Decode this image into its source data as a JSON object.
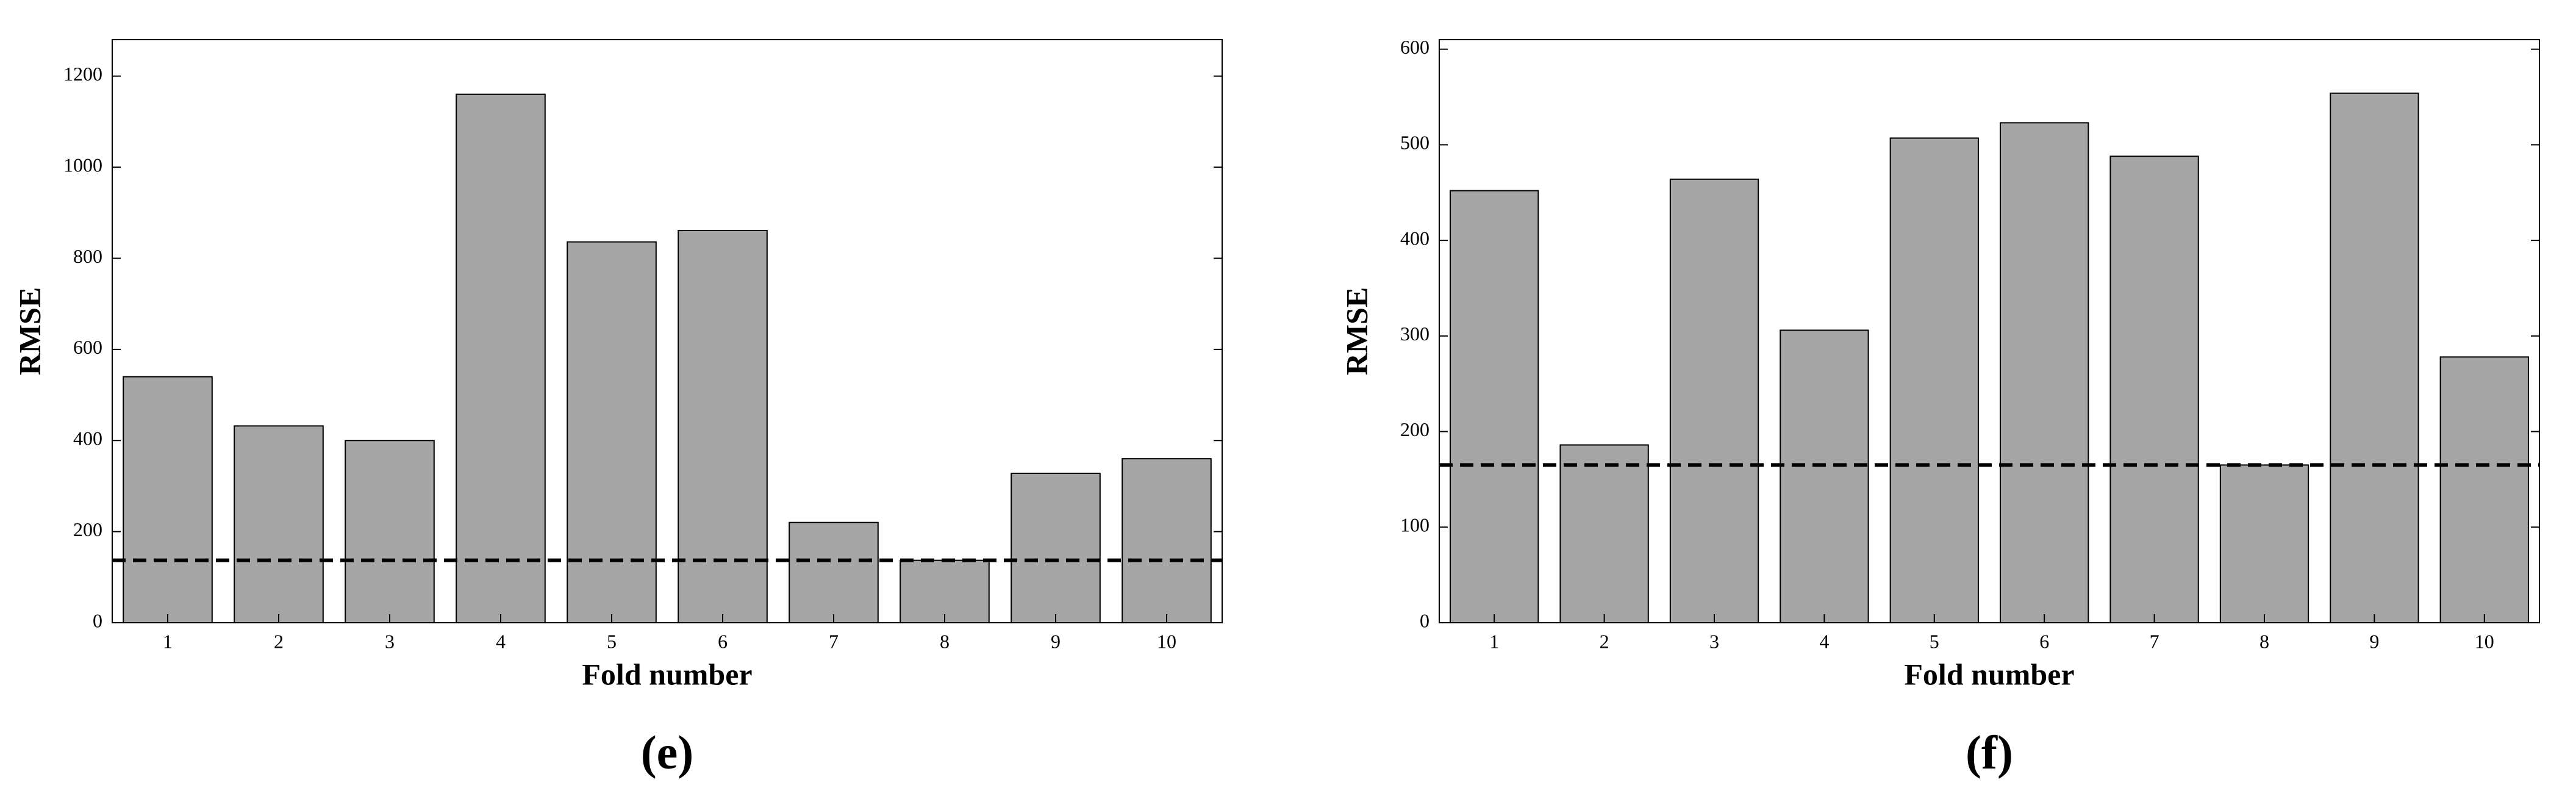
{
  "chart_data": [
    {
      "type": "bar",
      "caption": "(e)",
      "xlabel": "Fold number",
      "ylabel": "RMSE",
      "categories": [
        "1",
        "2",
        "3",
        "4",
        "5",
        "6",
        "7",
        "8",
        "9",
        "10"
      ],
      "values": [
        540,
        432,
        400,
        1160,
        836,
        861,
        220,
        137,
        328,
        360
      ],
      "color": "#a6a6a6",
      "reference_line": 137,
      "ylim": [
        0,
        1280
      ],
      "yticks": [
        0,
        200,
        400,
        600,
        800,
        1000,
        1200
      ]
    },
    {
      "type": "bar",
      "caption": "(f)",
      "xlabel": "Fold number",
      "ylabel": "RMSE",
      "categories": [
        "1",
        "2",
        "3",
        "4",
        "5",
        "6",
        "7",
        "8",
        "9",
        "10"
      ],
      "values": [
        452,
        186,
        464,
        306,
        507,
        523,
        488,
        165,
        554,
        278
      ],
      "color": "#a6a6a6",
      "reference_line": 165,
      "ylim": [
        0,
        610
      ],
      "yticks": [
        0,
        100,
        200,
        300,
        400,
        500,
        600
      ]
    }
  ]
}
